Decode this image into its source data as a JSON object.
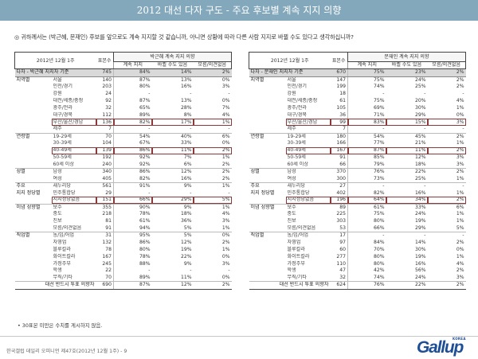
{
  "header": {
    "title": "2012 대선 다자 구도 - 주요 후보별 계속 지지 의향"
  },
  "question": "◎  귀하께서는 (박근혜, 문재인) 후보를 앞으로도 계속 지지할 것 같습니까, 아니면 상황에 따라 다른 사람 지지로 바뀔 수도 있다고 생각하십니까?",
  "left_table": {
    "period": "2012년 12월 1주",
    "base_header": "표본수",
    "group_header": "박근혜 계속 지지 의향",
    "sub_headers": [
      "계속 지지",
      "바뀔 수도 있음",
      "모름/의견없음"
    ],
    "total": {
      "label": "다자 - 박근혜 지지자 기준",
      "base": "745",
      "values": [
        "84%",
        "14%",
        "2%"
      ]
    },
    "rows": [
      {
        "cat": "지역별",
        "sub": "서울",
        "base": "140",
        "v": [
          "87%",
          "13%",
          "0%"
        ]
      },
      {
        "cat": "",
        "sub": "인천/경기",
        "base": "203",
        "v": [
          "80%",
          "16%",
          "3%"
        ]
      },
      {
        "cat": "",
        "sub": "강원",
        "base": "24",
        "v": [
          "-",
          "-",
          "-"
        ]
      },
      {
        "cat": "",
        "sub": "대전/세종/충청",
        "base": "92",
        "v": [
          "87%",
          "13%",
          "0%"
        ]
      },
      {
        "cat": "",
        "sub": "광주/전라",
        "base": "32",
        "v": [
          "65%",
          "28%",
          "7%"
        ]
      },
      {
        "cat": "",
        "sub": "대구/경북",
        "base": "112",
        "v": [
          "89%",
          "8%",
          "4%"
        ]
      },
      {
        "cat": "",
        "sub": "부산/울산/경남",
        "base": "136",
        "v": [
          "82%",
          "17%",
          "1%"
        ]
      },
      {
        "cat": "",
        "sub": "제주",
        "base": "7",
        "v": [
          "-",
          "-",
          "-"
        ]
      },
      {
        "cat": "연령별",
        "sub": "19-29세",
        "base": "70",
        "v": [
          "54%",
          "40%",
          "6%"
        ]
      },
      {
        "cat": "",
        "sub": "30-39세",
        "base": "104",
        "v": [
          "67%",
          "33%",
          "0%"
        ]
      },
      {
        "cat": "",
        "sub": "40-49세",
        "base": "139",
        "v": [
          "86%",
          "11%",
          "2%"
        ]
      },
      {
        "cat": "",
        "sub": "50-59세",
        "base": "192",
        "v": [
          "92%",
          "7%",
          "1%"
        ]
      },
      {
        "cat": "",
        "sub": "60세 이상",
        "base": "240",
        "v": [
          "92%",
          "6%",
          "2%"
        ]
      },
      {
        "cat": "성별",
        "sub": "남성",
        "base": "340",
        "v": [
          "86%",
          "12%",
          "2%"
        ]
      },
      {
        "cat": "",
        "sub": "여성",
        "base": "405",
        "v": [
          "82%",
          "16%",
          "2%"
        ]
      },
      {
        "cat": "주요",
        "sub": "새누리당",
        "base": "561",
        "v": [
          "91%",
          "9%",
          "1%"
        ]
      },
      {
        "cat": "지지 정당별",
        "sub": "민주통합당",
        "base": "29",
        "v": [
          "-",
          "-",
          "-"
        ]
      },
      {
        "cat": "",
        "sub": "지지정당없음",
        "base": "151",
        "v": [
          "66%",
          "29%",
          "5%"
        ]
      },
      {
        "cat": "이념 성향별",
        "sub": "보수",
        "base": "355",
        "v": [
          "90%",
          "9%",
          "1%"
        ]
      },
      {
        "cat": "",
        "sub": "중도",
        "base": "218",
        "v": [
          "78%",
          "18%",
          "4%"
        ]
      },
      {
        "cat": "",
        "sub": "진보",
        "base": "81",
        "v": [
          "61%",
          "36%",
          "3%"
        ]
      },
      {
        "cat": "",
        "sub": "모름/의견없음",
        "base": "91",
        "v": [
          "94%",
          "5%",
          "1%"
        ]
      },
      {
        "cat": "직업별",
        "sub": "농/임/어업",
        "base": "31",
        "v": [
          "95%",
          "5%",
          "0%"
        ]
      },
      {
        "cat": "",
        "sub": "자영업",
        "base": "132",
        "v": [
          "86%",
          "12%",
          "2%"
        ]
      },
      {
        "cat": "",
        "sub": "블루칼라",
        "base": "78",
        "v": [
          "80%",
          "19%",
          "1%"
        ]
      },
      {
        "cat": "",
        "sub": "화이트칼라",
        "base": "167",
        "v": [
          "78%",
          "22%",
          "0%"
        ]
      },
      {
        "cat": "",
        "sub": "가정주부",
        "base": "245",
        "v": [
          "88%",
          "9%",
          "3%"
        ]
      },
      {
        "cat": "",
        "sub": "학생",
        "base": "22",
        "v": [
          "-",
          "-",
          "-"
        ]
      },
      {
        "cat": "",
        "sub": "무직/기타",
        "base": "70",
        "v": [
          "89%",
          "11%",
          "0%"
        ]
      },
      {
        "cat": "대선 반드시 투표 의향자",
        "sub": "",
        "base": "690",
        "v": [
          "87%",
          "12%",
          "2%"
        ]
      }
    ]
  },
  "right_table": {
    "period": "2012년 12월 1주",
    "base_header": "표본수",
    "group_header": "문재인 계속 지지 의향",
    "sub_headers": [
      "계속 지지",
      "바뀔 수도 있음",
      "모름/의견없음"
    ],
    "total": {
      "label": "다자 - 문재인 지지자 기준",
      "base": "670",
      "values": [
        "75%",
        "23%",
        "2%"
      ]
    },
    "rows": [
      {
        "cat": "지역별",
        "sub": "서울",
        "base": "147",
        "v": [
          "75%",
          "24%",
          "2%"
        ]
      },
      {
        "cat": "",
        "sub": "인천/경기",
        "base": "199",
        "v": [
          "74%",
          "25%",
          "2%"
        ]
      },
      {
        "cat": "",
        "sub": "강원",
        "base": "18",
        "v": [
          "-",
          "-",
          "-"
        ]
      },
      {
        "cat": "",
        "sub": "대전/세종/충청",
        "base": "61",
        "v": [
          "75%",
          "20%",
          "4%"
        ]
      },
      {
        "cat": "",
        "sub": "광주/전라",
        "base": "105",
        "v": [
          "69%",
          "30%",
          "1%"
        ]
      },
      {
        "cat": "",
        "sub": "대구/경북",
        "base": "36",
        "v": [
          "71%",
          "29%",
          "0%"
        ]
      },
      {
        "cat": "",
        "sub": "부산/울산/경남",
        "base": "99",
        "v": [
          "83%",
          "15%",
          "3%"
        ]
      },
      {
        "cat": "",
        "sub": "제주",
        "base": "7",
        "v": [
          "-",
          "-",
          "-"
        ]
      },
      {
        "cat": "연령별",
        "sub": "19-29세",
        "base": "180",
        "v": [
          "54%",
          "45%",
          "2%"
        ]
      },
      {
        "cat": "",
        "sub": "30-39세",
        "base": "166",
        "v": [
          "77%",
          "21%",
          "1%"
        ]
      },
      {
        "cat": "",
        "sub": "40-49세",
        "base": "167",
        "v": [
          "87%",
          "11%",
          "2%"
        ]
      },
      {
        "cat": "",
        "sub": "50-59세",
        "base": "91",
        "v": [
          "85%",
          "12%",
          "3%"
        ]
      },
      {
        "cat": "",
        "sub": "60세 이상",
        "base": "66",
        "v": [
          "79%",
          "18%",
          "3%"
        ]
      },
      {
        "cat": "성별",
        "sub": "남성",
        "base": "370",
        "v": [
          "76%",
          "22%",
          "2%"
        ]
      },
      {
        "cat": "",
        "sub": "여성",
        "base": "300",
        "v": [
          "73%",
          "25%",
          "1%"
        ]
      },
      {
        "cat": "주요",
        "sub": "새누리당",
        "base": "27",
        "v": [
          "-",
          "-",
          "-"
        ]
      },
      {
        "cat": "지지 정당별",
        "sub": "민주통합당",
        "base": "402",
        "v": [
          "82%",
          "16%",
          "1%"
        ]
      },
      {
        "cat": "",
        "sub": "지지정당없음",
        "base": "196",
        "v": [
          "64%",
          "34%",
          "2%"
        ]
      },
      {
        "cat": "이념 성향별",
        "sub": "보수",
        "base": "89",
        "v": [
          "61%",
          "33%",
          "6%"
        ]
      },
      {
        "cat": "",
        "sub": "중도",
        "base": "225",
        "v": [
          "75%",
          "24%",
          "1%"
        ]
      },
      {
        "cat": "",
        "sub": "진보",
        "base": "303",
        "v": [
          "80%",
          "19%",
          "1%"
        ]
      },
      {
        "cat": "",
        "sub": "모름/의견없음",
        "base": "53",
        "v": [
          "66%",
          "29%",
          "5%"
        ]
      },
      {
        "cat": "직업별",
        "sub": "농/임/어업",
        "base": "17",
        "v": [
          "-",
          "-",
          "-"
        ]
      },
      {
        "cat": "",
        "sub": "자영업",
        "base": "97",
        "v": [
          "84%",
          "14%",
          "2%"
        ]
      },
      {
        "cat": "",
        "sub": "블루칼라",
        "base": "60",
        "v": [
          "70%",
          "30%",
          "0%"
        ]
      },
      {
        "cat": "",
        "sub": "화이트칼라",
        "base": "277",
        "v": [
          "80%",
          "19%",
          "1%"
        ]
      },
      {
        "cat": "",
        "sub": "가정주부",
        "base": "110",
        "v": [
          "80%",
          "16%",
          "4%"
        ]
      },
      {
        "cat": "",
        "sub": "학생",
        "base": "47",
        "v": [
          "42%",
          "56%",
          "2%"
        ]
      },
      {
        "cat": "",
        "sub": "무직/기타",
        "base": "32",
        "v": [
          "74%",
          "24%",
          "3%"
        ]
      },
      {
        "cat": "대선 반드시 투표 의향자",
        "sub": "",
        "base": "624",
        "v": [
          "76%",
          "22%",
          "2%"
        ]
      }
    ]
  },
  "note": "• 30표본 미만은 수치를 게시하지 않음.",
  "footer": {
    "source": "한국갤럽 데일리 오피니언 제47호(2012년 12월 1주) - 9"
  },
  "brand": {
    "name": "Gallup",
    "region": "KOREA",
    "color": "#1e4e96"
  }
}
